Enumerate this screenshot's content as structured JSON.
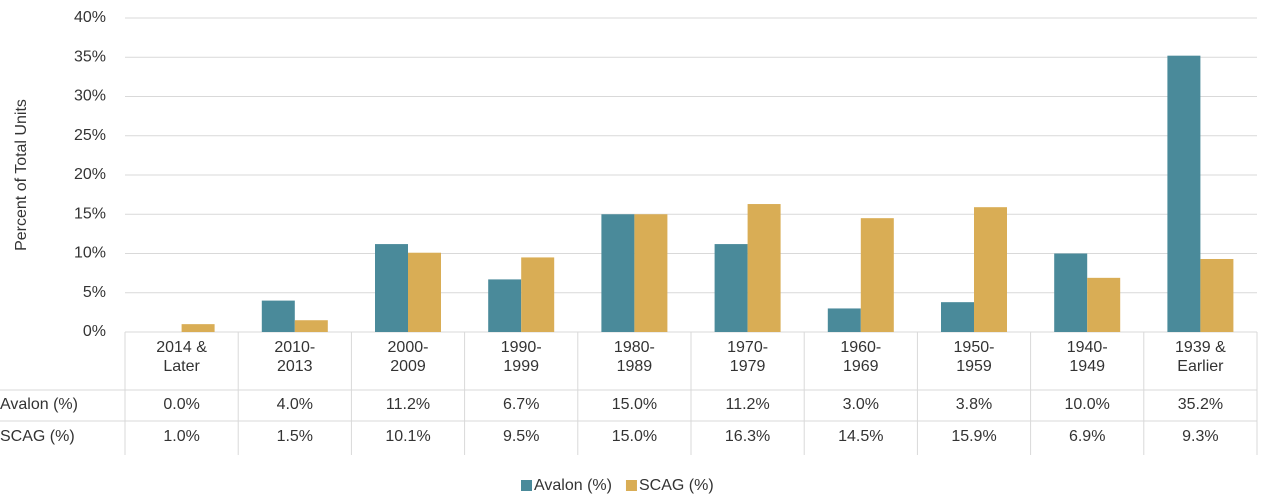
{
  "chart_data": {
    "type": "bar",
    "y_axis_label": "Percent of Total Units",
    "categories": [
      "2014 & Later",
      "2010-2013",
      "2000-2009",
      "1990-1999",
      "1980-1989",
      "1970-1979",
      "1960-1969",
      "1950-1959",
      "1940-1949",
      "1939 & Earlier"
    ],
    "series": [
      {
        "name": "Avalon (%)",
        "color": "#4a8a9a",
        "values": [
          0.0,
          4.0,
          11.2,
          6.7,
          15.0,
          11.2,
          3.0,
          3.8,
          10.0,
          35.2
        ],
        "value_labels": [
          "0.0%",
          "4.0%",
          "11.2%",
          "6.7%",
          "15.0%",
          "11.2%",
          "3.0%",
          "3.8%",
          "10.0%",
          "35.2%"
        ]
      },
      {
        "name": "SCAG (%)",
        "color": "#d9ad55",
        "values": [
          1.0,
          1.5,
          10.1,
          9.5,
          15.0,
          16.3,
          14.5,
          15.9,
          6.9,
          9.3
        ],
        "value_labels": [
          "1.0%",
          "1.5%",
          "10.1%",
          "9.5%",
          "15.0%",
          "16.3%",
          "14.5%",
          "15.9%",
          "6.9%",
          "9.3%"
        ]
      }
    ],
    "ylim": [
      0,
      40
    ],
    "yticks": [
      {
        "value": 0,
        "label": "0%"
      },
      {
        "value": 5,
        "label": "5%"
      },
      {
        "value": 10,
        "label": "10%"
      },
      {
        "value": 15,
        "label": "15%"
      },
      {
        "value": 20,
        "label": "20%"
      },
      {
        "value": 25,
        "label": "25%"
      },
      {
        "value": 30,
        "label": "30%"
      },
      {
        "value": 35,
        "label": "35%"
      },
      {
        "value": 40,
        "label": "40%"
      }
    ],
    "grid": true,
    "legend": "bottom"
  }
}
